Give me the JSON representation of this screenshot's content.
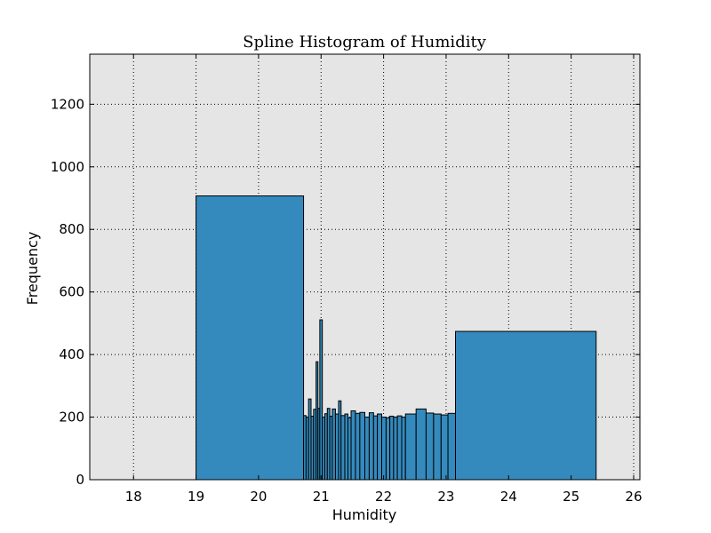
{
  "chart_data": {
    "type": "bar",
    "title": "Spline Histogram of Humidity",
    "xlabel": "Humidity",
    "ylabel": "Frequency",
    "xlim": [
      17.3,
      26.1
    ],
    "ylim": [
      0,
      1360
    ],
    "xticks": [
      18,
      19,
      20,
      21,
      22,
      23,
      24,
      25,
      26
    ],
    "yticks": [
      0,
      200,
      400,
      600,
      800,
      1000,
      1200
    ],
    "grid": true,
    "bar_color": "#348abd",
    "plot_background": "#e5e5e5",
    "bins": [
      {
        "x0": 19.0,
        "x1": 20.72,
        "count": 907
      },
      {
        "x0": 20.72,
        "x1": 20.76,
        "count": 205
      },
      {
        "x0": 20.76,
        "x1": 20.8,
        "count": 200
      },
      {
        "x0": 20.8,
        "x1": 20.84,
        "count": 258
      },
      {
        "x0": 20.84,
        "x1": 20.88,
        "count": 203
      },
      {
        "x0": 20.88,
        "x1": 20.92,
        "count": 225
      },
      {
        "x0": 20.92,
        "x1": 20.95,
        "count": 377
      },
      {
        "x0": 20.95,
        "x1": 20.98,
        "count": 228
      },
      {
        "x0": 20.98,
        "x1": 21.02,
        "count": 511
      },
      {
        "x0": 21.02,
        "x1": 21.06,
        "count": 200
      },
      {
        "x0": 21.06,
        "x1": 21.1,
        "count": 211
      },
      {
        "x0": 21.1,
        "x1": 21.14,
        "count": 228
      },
      {
        "x0": 21.14,
        "x1": 21.18,
        "count": 203
      },
      {
        "x0": 21.18,
        "x1": 21.23,
        "count": 226
      },
      {
        "x0": 21.23,
        "x1": 21.28,
        "count": 210
      },
      {
        "x0": 21.28,
        "x1": 21.32,
        "count": 252
      },
      {
        "x0": 21.32,
        "x1": 21.38,
        "count": 205
      },
      {
        "x0": 21.38,
        "x1": 21.43,
        "count": 210
      },
      {
        "x0": 21.43,
        "x1": 21.48,
        "count": 198
      },
      {
        "x0": 21.48,
        "x1": 21.55,
        "count": 220
      },
      {
        "x0": 21.55,
        "x1": 21.62,
        "count": 212
      },
      {
        "x0": 21.62,
        "x1": 21.7,
        "count": 215
      },
      {
        "x0": 21.7,
        "x1": 21.77,
        "count": 200
      },
      {
        "x0": 21.77,
        "x1": 21.84,
        "count": 214
      },
      {
        "x0": 21.84,
        "x1": 21.9,
        "count": 204
      },
      {
        "x0": 21.9,
        "x1": 21.97,
        "count": 210
      },
      {
        "x0": 21.97,
        "x1": 22.04,
        "count": 200
      },
      {
        "x0": 22.04,
        "x1": 22.1,
        "count": 198
      },
      {
        "x0": 22.1,
        "x1": 22.16,
        "count": 203
      },
      {
        "x0": 22.16,
        "x1": 22.22,
        "count": 200
      },
      {
        "x0": 22.22,
        "x1": 22.29,
        "count": 204
      },
      {
        "x0": 22.29,
        "x1": 22.35,
        "count": 200
      },
      {
        "x0": 22.35,
        "x1": 22.52,
        "count": 210
      },
      {
        "x0": 22.52,
        "x1": 22.68,
        "count": 226
      },
      {
        "x0": 22.68,
        "x1": 22.8,
        "count": 213
      },
      {
        "x0": 22.8,
        "x1": 22.92,
        "count": 210
      },
      {
        "x0": 22.92,
        "x1": 23.03,
        "count": 207
      },
      {
        "x0": 23.03,
        "x1": 23.15,
        "count": 212
      },
      {
        "x0": 23.15,
        "x1": 25.4,
        "count": 474
      }
    ]
  }
}
